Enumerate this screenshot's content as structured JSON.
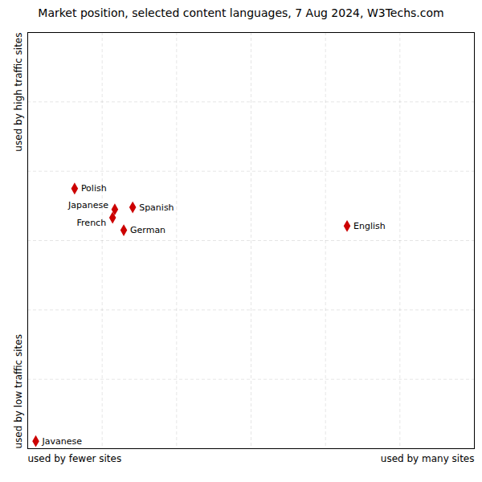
{
  "chart_data": {
    "type": "scatter",
    "title": "Market position, selected content languages, 7 Aug 2024, W3Techs.com",
    "xlabel_left": "used by fewer sites",
    "xlabel_right": "used by many sites",
    "ylabel_top": "used by high traffic sites",
    "ylabel_bottom": "used by low traffic sites",
    "labels": [
      "Polish",
      "Japanese",
      "Spanish",
      "French",
      "German",
      "English",
      "Javanese"
    ],
    "x": [
      0.105,
      0.195,
      0.235,
      0.19,
      0.215,
      0.715,
      0.018
    ],
    "y": [
      0.625,
      0.575,
      0.58,
      0.555,
      0.525,
      0.535,
      0.018
    ],
    "color": "#cc0000",
    "marker": "diamond",
    "xlim": [
      0,
      1
    ],
    "ylim": [
      0,
      1
    ],
    "xticks": [
      0.16666666666666666,
      0.3333333333333333,
      0.5,
      0.6666666666666666,
      0.8333333333333334
    ],
    "yticks": [
      0.16666666666666666,
      0.3333333333333333,
      0.5,
      0.6666666666666666,
      0.8333333333333334
    ],
    "grid": true,
    "tick_labels": false
  }
}
